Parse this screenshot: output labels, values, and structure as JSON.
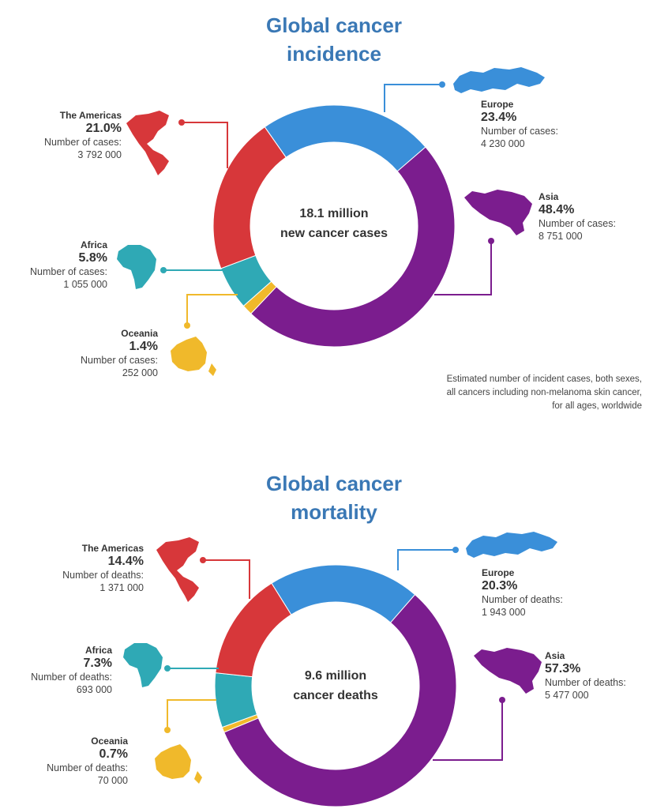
{
  "chart_data": [
    {
      "type": "pie",
      "title": "Global cancer incidence",
      "center_label": [
        "18.1 million",
        "new cancer cases"
      ],
      "footnote": [
        "Estimated number of incident cases, both sexes,",
        "all cancers including non-melanoma skin cancer,",
        "for all ages, worldwide"
      ],
      "value_label": "Number of cases:",
      "slices": [
        {
          "name": "Europe",
          "percent": 23.4,
          "percent_label": "23.4%",
          "count": "4 230 000",
          "color": "#3a8fd9"
        },
        {
          "name": "Asia",
          "percent": 48.4,
          "percent_label": "48.4%",
          "count": "8 751 000",
          "color": "#7b1d8e"
        },
        {
          "name": "Oceania",
          "percent": 1.4,
          "percent_label": "1.4%",
          "count": "252 000",
          "color": "#f0b92b"
        },
        {
          "name": "Africa",
          "percent": 5.8,
          "percent_label": "5.8%",
          "count": "1 055 000",
          "color": "#2fa9b5"
        },
        {
          "name": "The Americas",
          "percent": 21.0,
          "percent_label": "21.0%",
          "count": "3 792 000",
          "color": "#d7373a"
        }
      ]
    },
    {
      "type": "pie",
      "title": "Global cancer mortality",
      "center_label": [
        "9.6 million",
        "cancer deaths"
      ],
      "value_label": "Number of deaths:",
      "slices": [
        {
          "name": "Europe",
          "percent": 20.3,
          "percent_label": "20.3%",
          "count": "1 943 000",
          "color": "#3a8fd9"
        },
        {
          "name": "Asia",
          "percent": 57.3,
          "percent_label": "57.3%",
          "count": "5 477 000",
          "color": "#7b1d8e"
        },
        {
          "name": "Oceania",
          "percent": 0.7,
          "percent_label": "0.7%",
          "count": "70 000",
          "color": "#f0b92b"
        },
        {
          "name": "Africa",
          "percent": 7.3,
          "percent_label": "7.3%",
          "count": "693 000",
          "color": "#2fa9b5"
        },
        {
          "name": "The Americas",
          "percent": 14.4,
          "percent_label": "14.4%",
          "count": "1 371 000",
          "color": "#d7373a"
        }
      ]
    }
  ]
}
